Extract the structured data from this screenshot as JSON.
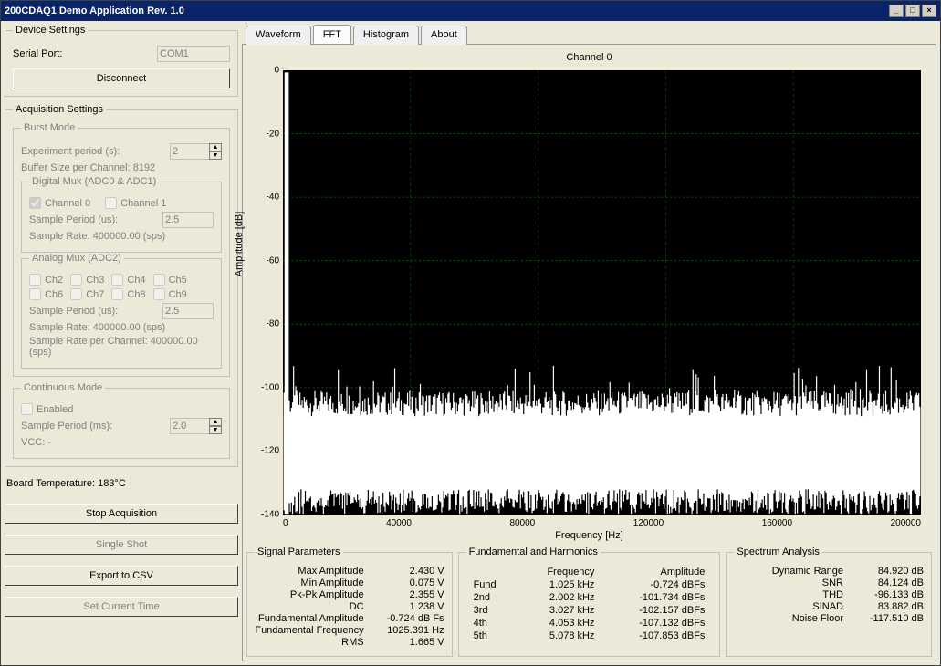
{
  "window": {
    "title": "200CDAQ1 Demo Application Rev. 1.0"
  },
  "device": {
    "legend": "Device Settings",
    "serial_label": "Serial Port:",
    "serial_value": "COM1",
    "disconnect": "Disconnect"
  },
  "acq": {
    "legend": "Acquisition Settings",
    "burst": {
      "legend": "Burst Mode",
      "exp_label": "Experiment period (s):",
      "exp_value": "2",
      "buffer_label": "Buffer Size per Channel: 8192",
      "digmux": {
        "legend": "Digital Mux (ADC0 & ADC1)",
        "ch0": "Channel 0",
        "ch1": "Channel 1",
        "sp_label": "Sample Period (us):",
        "sp_value": "2.5",
        "sr_label": "Sample Rate: 400000.00 (sps)"
      },
      "anamux": {
        "legend": "Analog Mux (ADC2)",
        "ch2": "Ch2",
        "ch3": "Ch3",
        "ch4": "Ch4",
        "ch5": "Ch5",
        "ch6": "Ch6",
        "ch7": "Ch7",
        "ch8": "Ch8",
        "ch9": "Ch9",
        "sp_label": "Sample Period (us):",
        "sp_value": "2.5",
        "sr_label": "Sample Rate: 400000.00 (sps)",
        "srpc_label": "Sample Rate per Channel: 400000.00 (sps)"
      }
    },
    "cont": {
      "legend": "Continuous Mode",
      "enabled": "Enabled",
      "sp_label": "Sample Period (ms):",
      "sp_value": "2.0",
      "vcc_label": "VCC: -"
    }
  },
  "board_temp": "Board Temperature: 183°C",
  "buttons": {
    "stop": "Stop Acquisition",
    "single": "Single Shot",
    "export": "Export to CSV",
    "settime": "Set Current Time"
  },
  "tabs": {
    "waveform": "Waveform",
    "fft": "FFT",
    "histogram": "Histogram",
    "about": "About"
  },
  "chart": {
    "title": "Channel 0",
    "ylabel": "Amplitude [dB]",
    "xlabel": "Frequency [Hz]",
    "ylim": [
      -140,
      0
    ],
    "ytick_step": 20,
    "xlim": [
      0,
      200000
    ],
    "xtick_step": 40000,
    "bg_color": "#000000",
    "grid_color": "#006400",
    "grid_dash": "2,2",
    "trace_color": "#ffffff",
    "yticks": [
      "0",
      "-20",
      "-40",
      "-60",
      "-80",
      "-100",
      "-120",
      "-140"
    ],
    "xticks": [
      "0",
      "40000",
      "80000",
      "120000",
      "160000",
      "200000"
    ],
    "noise_mean_db": -125,
    "noise_top_db": -105,
    "noise_spread_db": 20,
    "peak_freq_hz": 1025,
    "peak_db": -0.7
  },
  "sigparams": {
    "legend": "Signal Parameters",
    "rows": [
      {
        "k": "Max Amplitude",
        "v": "2.430 V"
      },
      {
        "k": "Min Amplitude",
        "v": "0.075 V"
      },
      {
        "k": "Pk-Pk Amplitude",
        "v": "2.355 V"
      },
      {
        "k": "DC",
        "v": "1.238 V"
      },
      {
        "k": "Fundamental Amplitude",
        "v": "-0.724 dB Fs"
      },
      {
        "k": "Fundamental Frequency",
        "v": "1025.391 Hz"
      },
      {
        "k": "RMS",
        "v": "1.665 V"
      }
    ]
  },
  "harmonics": {
    "legend": "Fundamental and Harmonics",
    "col_freq": "Frequency",
    "col_amp": "Amplitude",
    "rows": [
      {
        "n": "Fund",
        "f": "1.025  kHz",
        "a": "-0.724  dBFs"
      },
      {
        "n": "2nd",
        "f": "2.002  kHz",
        "a": "-101.734  dBFs"
      },
      {
        "n": "3rd",
        "f": "3.027  kHz",
        "a": "-102.157  dBFs"
      },
      {
        "n": "4th",
        "f": "4.053  kHz",
        "a": "-107.132  dBFs"
      },
      {
        "n": "5th",
        "f": "5.078  kHz",
        "a": "-107.853  dBFs"
      }
    ]
  },
  "spectrum": {
    "legend": "Spectrum Analysis",
    "rows": [
      {
        "k": "Dynamic Range",
        "v": "84.920  dB"
      },
      {
        "k": "SNR",
        "v": "84.124  dB"
      },
      {
        "k": "THD",
        "v": "-96.133  dB"
      },
      {
        "k": "SINAD",
        "v": "83.882  dB"
      },
      {
        "k": "Noise Floor",
        "v": "-117.510  dB"
      }
    ]
  }
}
